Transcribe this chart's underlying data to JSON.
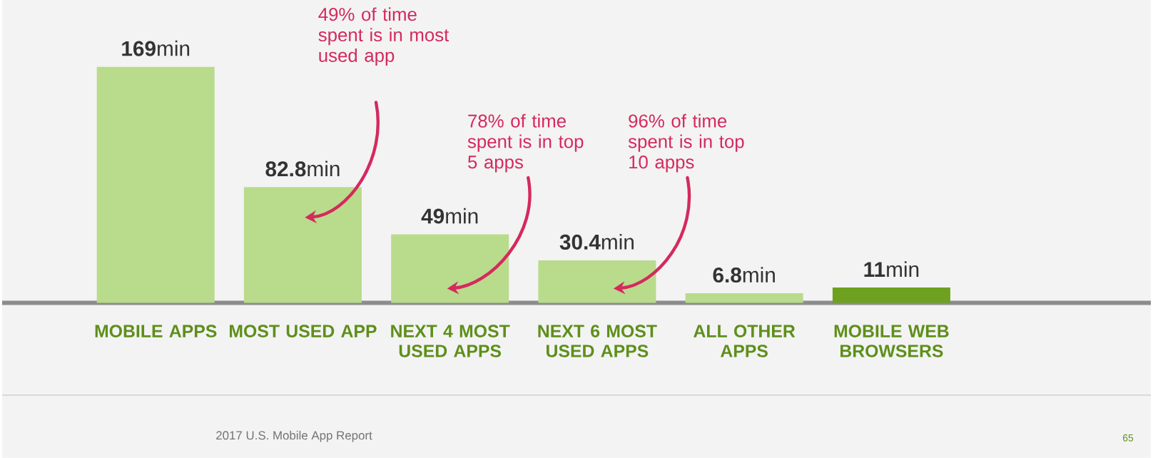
{
  "chart_data": {
    "type": "bar",
    "categories": [
      "MOBILE APPS",
      "MOST USED APP",
      "NEXT 4 MOST USED APPS",
      "NEXT 6 MOST USED APPS",
      "ALL OTHER APPS",
      "MOBILE WEB BROWSERS"
    ],
    "values": [
      169,
      82.8,
      49,
      30.4,
      6.8,
      11
    ],
    "colors": [
      "#b9db8c",
      "#b9db8c",
      "#b9db8c",
      "#b9db8c",
      "#b9db8c",
      "#6da11f"
    ],
    "value_labels": [
      "**169**min",
      "**82.8**min",
      "**49**min",
      "**30.4**min",
      "**6.8**min",
      "**11**min"
    ],
    "annotations": [
      "49% of time spent is in most used app",
      "78% of time spent is in top 5 apps",
      "96% of time spent is in top 10 apps",
      "2017 U.S. Mobile App Report",
      "65"
    ]
  }
}
